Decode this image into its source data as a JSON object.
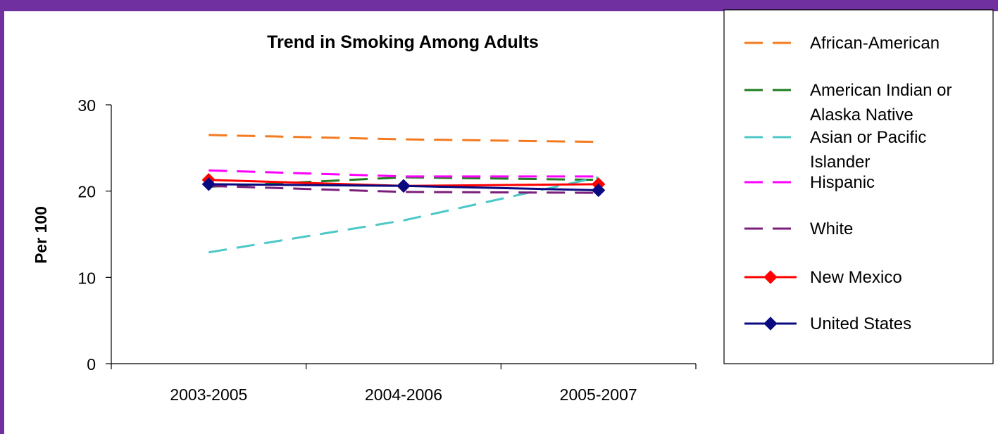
{
  "frame": {
    "accent": "#7030A0"
  },
  "chart_data": {
    "type": "line",
    "title": "Trend in Smoking Among Adults",
    "xlabel": "",
    "ylabel": "Per 100",
    "categories": [
      "2003-2005",
      "2004-2006",
      "2005-2007"
    ],
    "ylim": [
      0,
      30
    ],
    "yticks": [
      0,
      10,
      20,
      30
    ],
    "grid": false,
    "legend_position": "right",
    "series": [
      {
        "name": "African-American",
        "legend_lines": [
          "African-American"
        ],
        "color": "#F47A20",
        "style": "dashed",
        "marker": "none",
        "values": [
          26.5,
          26.0,
          25.7
        ]
      },
      {
        "name": "American Indian or Alaska Native",
        "legend_lines": [
          "American Indian or",
          "Alaska Native"
        ],
        "color": "#1E7B1E",
        "style": "dashed",
        "marker": "none",
        "values": [
          20.5,
          21.6,
          21.3
        ]
      },
      {
        "name": "Asian or Pacific Islander",
        "legend_lines": [
          "Asian or Pacific",
          "Islander"
        ],
        "color": "#4CC8C8",
        "style": "dashed",
        "marker": "none",
        "values": [
          12.9,
          16.6,
          21.6
        ]
      },
      {
        "name": "Hispanic",
        "legend_lines": [
          "Hispanic"
        ],
        "color": "#FF00FF",
        "style": "dashed",
        "marker": "none",
        "values": [
          22.4,
          21.7,
          21.7
        ]
      },
      {
        "name": "White",
        "legend_lines": [
          "White"
        ],
        "color": "#7B1F7B",
        "style": "dashed",
        "marker": "none",
        "values": [
          20.6,
          19.9,
          19.8
        ]
      },
      {
        "name": "New Mexico",
        "legend_lines": [
          "New Mexico"
        ],
        "color": "#FF0000",
        "style": "solid",
        "marker": "diamond",
        "values": [
          21.3,
          20.6,
          20.8
        ]
      },
      {
        "name": "United States",
        "legend_lines": [
          "United States"
        ],
        "color": "#0A0A80",
        "style": "solid",
        "marker": "diamond",
        "values": [
          20.8,
          20.6,
          20.1
        ]
      }
    ]
  }
}
